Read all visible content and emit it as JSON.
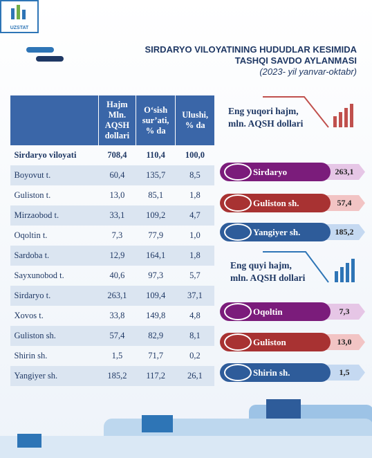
{
  "logo": "UZSTAT",
  "header": {
    "title_lines": [
      "SIRDARYO VILOYATINING HUDUDLAR KESIMIDA",
      "TASHQI SAVDO AYLANMASI"
    ],
    "subtitle": "(2023- yil yanvar-oktabr)"
  },
  "table": {
    "columns": [
      [
        "Hajm",
        "Mln.",
        "AQSH",
        "dollari"
      ],
      [
        "O‘sish",
        "sur’ati,",
        "% da"
      ],
      [
        "Ulushi,",
        "% da"
      ]
    ],
    "rows": [
      [
        "Sirdaryo viloyati",
        "708,4",
        "110,4",
        "100,0"
      ],
      [
        "Boyovut t.",
        "60,4",
        "135,7",
        "8,5"
      ],
      [
        "Guliston t.",
        "13,0",
        "85,1",
        "1,8"
      ],
      [
        "Mirzaobod t.",
        "33,1",
        "109,2",
        "4,7"
      ],
      [
        "Oqoltin t.",
        "7,3",
        "77,9",
        "1,0"
      ],
      [
        "Sardoba t.",
        "12,9",
        "164,1",
        "1,8"
      ],
      [
        "Sayxunobod t.",
        "40,6",
        "97,3",
        "5,7"
      ],
      [
        "Sirdaryo t.",
        "263,1",
        "109,4",
        "37,1"
      ],
      [
        "Xovos t.",
        "33,8",
        "149,8",
        "4,8"
      ],
      [
        "Guliston sh.",
        "57,4",
        "82,9",
        "8,1"
      ],
      [
        "Shirin sh.",
        "1,5",
        "71,7",
        "0,2"
      ],
      [
        "Yangiyer sh.",
        "185,2",
        "117,2",
        "26,1"
      ]
    ]
  },
  "top_panel": {
    "title_lines": [
      "Eng yuqori hajm,",
      "mln. AQSH dollari"
    ],
    "items": [
      {
        "label": "Sirdaryo",
        "value": "263,1"
      },
      {
        "label": "Guliston sh.",
        "value": "57,4"
      },
      {
        "label": "Yangiyer sh.",
        "value": "185,2"
      }
    ]
  },
  "bottom_panel": {
    "title_lines": [
      "Eng quyi hajm,",
      "mln. AQSH dollari"
    ],
    "items": [
      {
        "label": "Oqoltin",
        "value": "7,3"
      },
      {
        "label": "Guliston",
        "value": "13,0"
      },
      {
        "label": "Shirin sh.",
        "value": "1,5"
      }
    ]
  }
}
